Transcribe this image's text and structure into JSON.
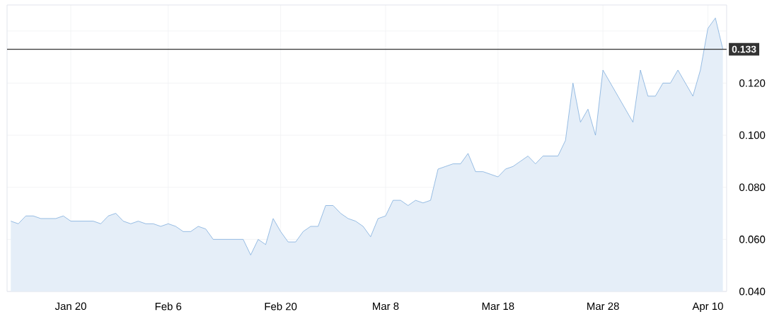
{
  "chart_data": {
    "type": "area",
    "categories": [
      null,
      null,
      null,
      null,
      null,
      null,
      null,
      null,
      "Jan 20",
      null,
      null,
      null,
      null,
      null,
      null,
      null,
      null,
      null,
      null,
      null,
      null,
      "Feb 6",
      null,
      null,
      null,
      null,
      null,
      null,
      null,
      null,
      null,
      null,
      null,
      null,
      null,
      null,
      "Feb 20",
      null,
      null,
      null,
      null,
      null,
      null,
      null,
      null,
      null,
      null,
      null,
      null,
      null,
      "Mar 8",
      null,
      null,
      null,
      null,
      null,
      null,
      null,
      null,
      null,
      null,
      null,
      null,
      null,
      null,
      "Mar 18",
      null,
      null,
      null,
      null,
      null,
      null,
      null,
      null,
      null,
      null,
      null,
      null,
      null,
      "Mar 28",
      null,
      null,
      null,
      null,
      null,
      null,
      null,
      null,
      null,
      null,
      null,
      null,
      null,
      "Apr 10",
      null,
      null
    ],
    "values": [
      0.067,
      0.066,
      0.069,
      0.069,
      0.068,
      0.068,
      0.068,
      0.069,
      0.067,
      0.067,
      0.067,
      0.067,
      0.066,
      0.069,
      0.07,
      0.067,
      0.066,
      0.067,
      0.066,
      0.066,
      0.065,
      0.066,
      0.065,
      0.063,
      0.063,
      0.065,
      0.064,
      0.06,
      0.06,
      0.06,
      0.06,
      0.06,
      0.054,
      0.06,
      0.058,
      0.068,
      0.063,
      0.059,
      0.059,
      0.063,
      0.065,
      0.065,
      0.073,
      0.073,
      0.07,
      0.068,
      0.067,
      0.065,
      0.061,
      0.068,
      0.069,
      0.075,
      0.075,
      0.073,
      0.075,
      0.074,
      0.075,
      0.087,
      0.088,
      0.089,
      0.089,
      0.093,
      0.086,
      0.086,
      0.085,
      0.084,
      0.087,
      0.088,
      0.09,
      0.092,
      0.089,
      0.092,
      0.092,
      0.092,
      0.098,
      0.12,
      0.105,
      0.11,
      0.1,
      0.125,
      null,
      null,
      null,
      0.105,
      0.125,
      0.115,
      0.115,
      0.12,
      0.12,
      0.125,
      null,
      0.115,
      0.125,
      0.141,
      0.145,
      0.133
    ],
    "color": "#6fa3d8",
    "ylim": [
      0.04,
      0.15
    ],
    "yticks": [
      {
        "value": 0.04,
        "label": "0.040"
      },
      {
        "value": 0.06,
        "label": "0.060"
      },
      {
        "value": 0.08,
        "label": "0.080"
      },
      {
        "value": 0.1,
        "label": "0.100"
      },
      {
        "value": 0.12,
        "label": "0.120"
      },
      {
        "value": 0.14,
        "label": null
      }
    ],
    "ref_lines": [
      {
        "axis": "y",
        "value": 0.133,
        "label": "0.133",
        "color": "#333333"
      }
    ],
    "grid": true,
    "marker": "none"
  }
}
